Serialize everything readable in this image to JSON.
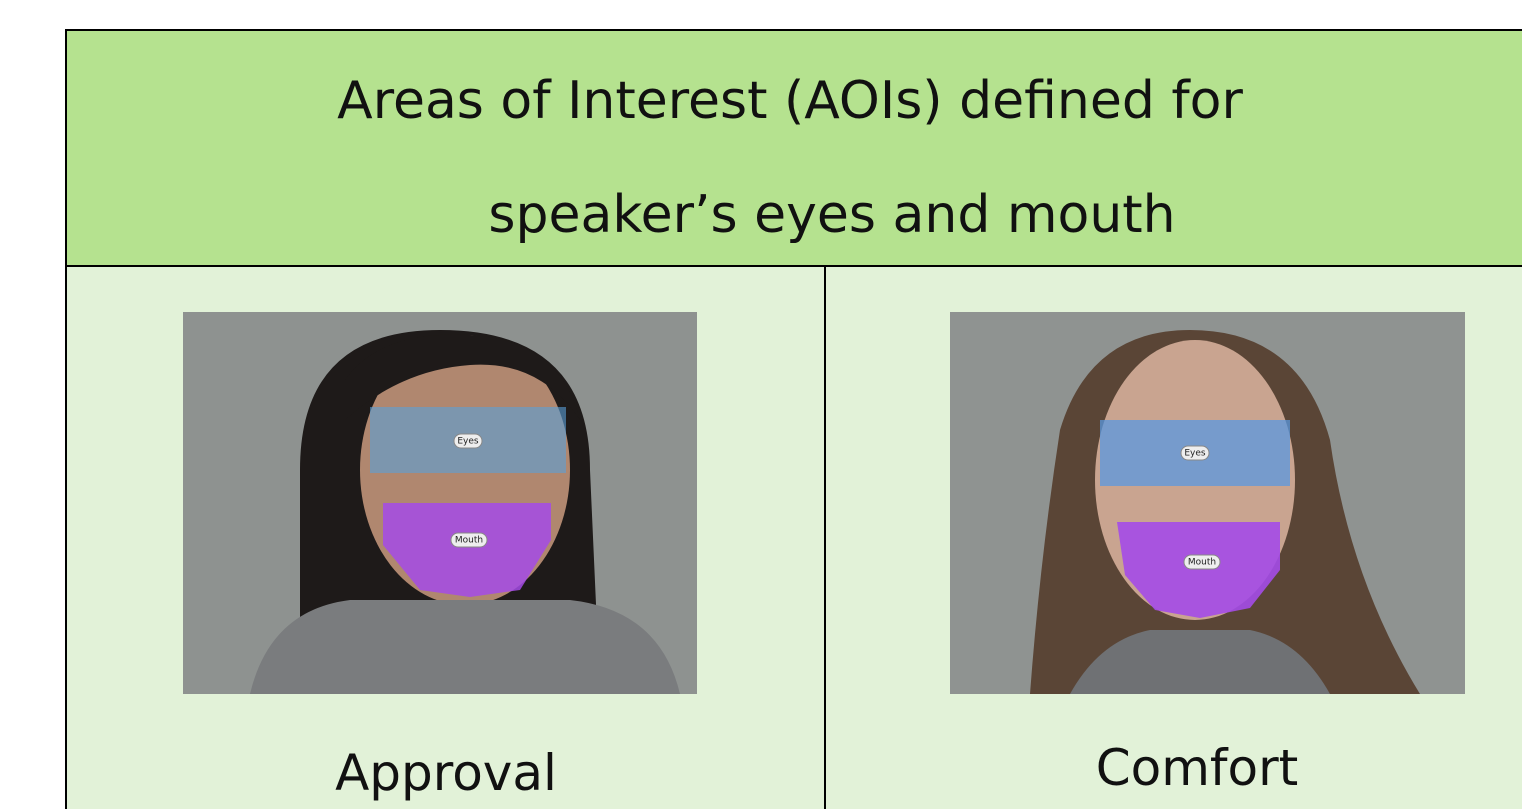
{
  "header": {
    "title_lines": [
      "Areas of Interest (AOIs) defined for",
      "speaker’s  eyes and mouth"
    ]
  },
  "cells": [
    {
      "caption": "Approval",
      "aoi_labels": [
        "Eyes",
        "Mouth"
      ]
    },
    {
      "caption": "Comfort",
      "aoi_labels": [
        "Eyes",
        "Mouth"
      ]
    }
  ]
}
